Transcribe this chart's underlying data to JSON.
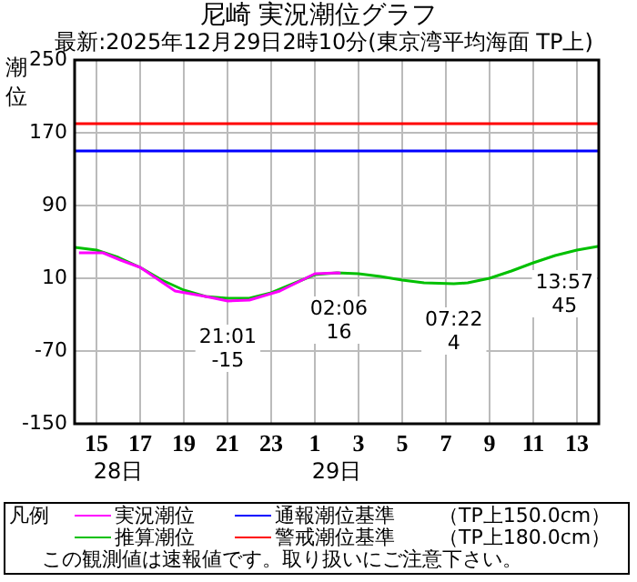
{
  "chart_data": {
    "type": "line",
    "title": "尼崎 実況潮位グラフ",
    "subtitle": "最新:2025年12月29日2時10分(東京湾平均海面 TP上)",
    "ylabel": "潮位",
    "legend_title": "凡例",
    "series": [
      {
        "name": "実況潮位",
        "color": "#ff00ff",
        "x": [
          "2025-12-28T14:12",
          "2025-12-28T15:18",
          "2025-12-28T16:06",
          "2025-12-28T17:00",
          "2025-12-28T17:48",
          "2025-12-28T18:36",
          "2025-12-28T20:00",
          "2025-12-28T21:01",
          "2025-12-28T22:00",
          "2025-12-28T23:24",
          "2025-12-29T00:30",
          "2025-12-29T01:00",
          "2025-12-29T02:06",
          "2025-12-29T02:10"
        ],
        "values": [
          38,
          38,
          30,
          22,
          9,
          -4,
          -10,
          -15,
          -14,
          -4,
          9,
          15,
          16,
          15
        ]
      },
      {
        "name": "推算潮位",
        "color": "#00c000",
        "x": [
          "2025-12-28T14:00",
          "2025-12-28T15:00",
          "2025-12-28T16:00",
          "2025-12-28T17:00",
          "2025-12-28T18:00",
          "2025-12-28T19:00",
          "2025-12-28T20:00",
          "2025-12-28T21:00",
          "2025-12-28T22:00",
          "2025-12-28T23:00",
          "2025-12-29T00:00",
          "2025-12-29T01:00",
          "2025-12-29T02:00",
          "2025-12-29T03:00",
          "2025-12-29T04:00",
          "2025-12-29T05:00",
          "2025-12-29T06:00",
          "2025-12-29T07:22",
          "2025-12-29T08:00",
          "2025-12-29T09:00",
          "2025-12-29T10:00",
          "2025-12-29T11:00",
          "2025-12-29T12:00",
          "2025-12-29T13:00",
          "2025-12-29T13:57",
          "2025-12-29T14:00"
        ],
        "values": [
          44,
          41,
          33,
          22,
          8,
          -3,
          -10,
          -12,
          -12,
          -6,
          4,
          14,
          16,
          15,
          12,
          8,
          5,
          4,
          5,
          10,
          18,
          27,
          35,
          41,
          45,
          45
        ]
      }
    ],
    "ref_lines": [
      {
        "axis": "y",
        "value": 150,
        "label": "通報潮位基準",
        "color": "#0000ff"
      },
      {
        "axis": "y",
        "value": 180,
        "label": "警戒潮位基準",
        "color": "#ff0000"
      }
    ],
    "xlim": [
      "2025-12-28T14:00",
      "2025-12-29T14:00"
    ],
    "xticks": [
      {
        "value": "2025-12-28T15:00",
        "label": "15"
      },
      {
        "value": "2025-12-28T17:00",
        "label": "17"
      },
      {
        "value": "2025-12-28T19:00",
        "label": "19"
      },
      {
        "value": "2025-12-28T21:00",
        "label": "21"
      },
      {
        "value": "2025-12-28T23:00",
        "label": "23"
      },
      {
        "value": "2025-12-29T01:00",
        "label": "1"
      },
      {
        "value": "2025-12-29T03:00",
        "label": "3"
      },
      {
        "value": "2025-12-29T05:00",
        "label": "5"
      },
      {
        "value": "2025-12-29T07:00",
        "label": "7"
      },
      {
        "value": "2025-12-29T09:00",
        "label": "9"
      },
      {
        "value": "2025-12-29T11:00",
        "label": "11"
      },
      {
        "value": "2025-12-29T13:00",
        "label": "13"
      }
    ],
    "ylim": [
      -150,
      250
    ],
    "yticks": [
      -150,
      -70,
      10,
      90,
      170,
      250
    ],
    "grid": true,
    "legend": "bottom",
    "marker": "none",
    "annotations": [
      {
        "text": "21:01\n-15",
        "x": "2025-12-28T21:01",
        "y": -15
      },
      {
        "text": "02:06\n16",
        "x": "2025-12-29T02:06",
        "y": 16
      },
      {
        "text": "07:22\n4",
        "x": "2025-12-29T07:22",
        "y": 4
      },
      {
        "text": "13:57\n45",
        "x": "2025-12-29T13:57",
        "y": 45
      },
      "28日",
      "29日",
      "（TP上150.0cm）",
      "（TP上180.0cm）",
      "この観測値は速報値です。取り扱いにご注意下さい。"
    ]
  }
}
